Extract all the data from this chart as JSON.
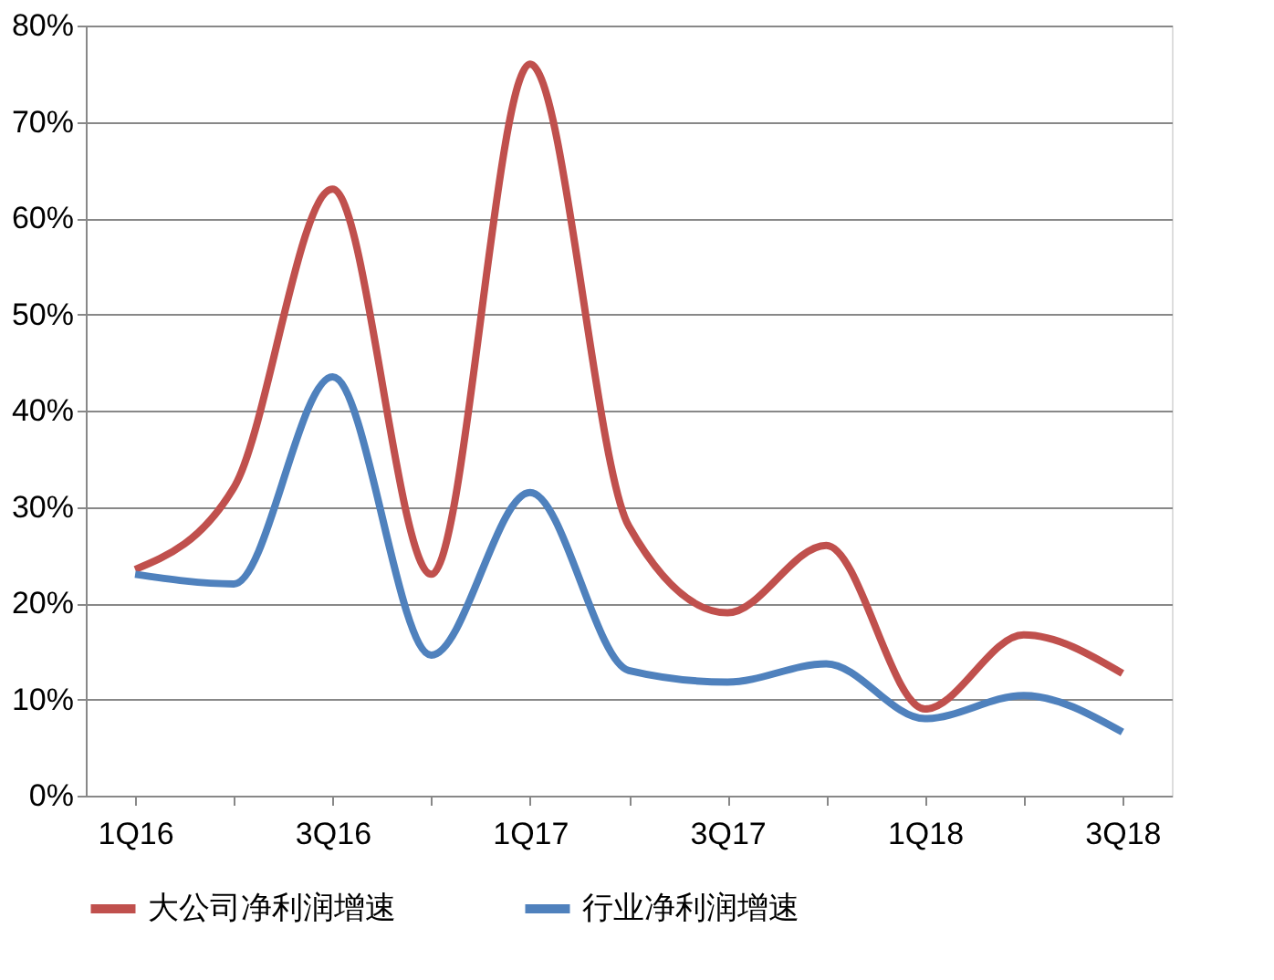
{
  "chart_data": {
    "type": "line",
    "categories": [
      "1Q16",
      null,
      "3Q16",
      null,
      "1Q17",
      null,
      "3Q17",
      null,
      "1Q18",
      null,
      "3Q18"
    ],
    "series": [
      {
        "name": "大公司净利润增速",
        "color": "#c0504d",
        "values": [
          23.5,
          32,
          63,
          23,
          76,
          28,
          19,
          26,
          9,
          16.7,
          12.7
        ]
      },
      {
        "name": "行业净利润增速",
        "color": "#4f81bd",
        "values": [
          23,
          22,
          43.5,
          14.6,
          31.5,
          13,
          11.8,
          13.7,
          8,
          10.4,
          6.6
        ]
      }
    ],
    "ylim": [
      0,
      80
    ],
    "yticks": [
      {
        "value": 0,
        "label": "0%"
      },
      {
        "value": 10,
        "label": "10%"
      },
      {
        "value": 20,
        "label": "20%"
      },
      {
        "value": 30,
        "label": "30%"
      },
      {
        "value": 40,
        "label": "40%"
      },
      {
        "value": 50,
        "label": "50%"
      },
      {
        "value": 60,
        "label": "60%"
      },
      {
        "value": 70,
        "label": "70%"
      },
      {
        "value": 80,
        "label": "80%"
      }
    ],
    "grid": "y",
    "legend": "bottom",
    "marker": "none",
    "line_style": "solid"
  }
}
